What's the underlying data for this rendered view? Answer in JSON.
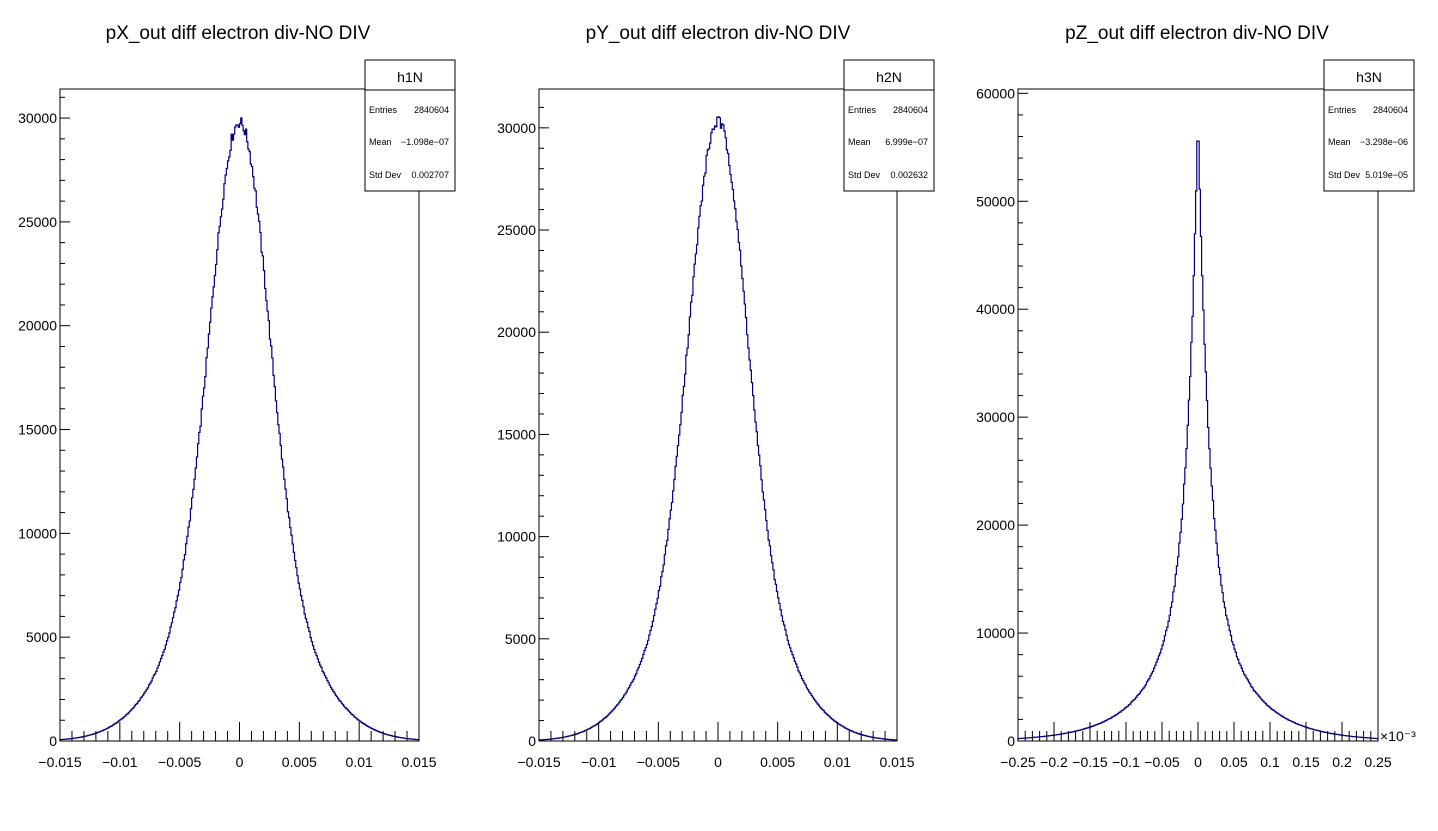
{
  "chart_data": [
    {
      "type": "histogram",
      "title": "pX_out diff electron div-NO DIV",
      "xlim": [
        -0.015,
        0.015
      ],
      "ylim": [
        0,
        31400
      ],
      "x_ticks": [
        "−0.015",
        "−0.01",
        "−0.005",
        "0",
        "0.005",
        "0.01",
        "0.015"
      ],
      "y_ticks": [
        "0",
        "5000",
        "10000",
        "15000",
        "20000",
        "25000",
        "30000"
      ],
      "x_exponent": "",
      "stats": {
        "name": "h1N",
        "entries": "2840604",
        "mean": "−1.098e−07",
        "std_dev": "0.002707"
      },
      "shape": {
        "peak": 29800,
        "sigma": 0.002707,
        "core_fraction": 0.7,
        "tail_width_ratio": 2.0,
        "bins": 300
      },
      "color": "#000080"
    },
    {
      "type": "histogram",
      "title": "pY_out diff electron div-NO DIV",
      "xlim": [
        -0.015,
        0.015
      ],
      "ylim": [
        0,
        31900
      ],
      "x_ticks": [
        "−0.015",
        "−0.01",
        "−0.005",
        "0",
        "0.005",
        "0.01",
        "0.015"
      ],
      "y_ticks": [
        "0",
        "5000",
        "10000",
        "15000",
        "20000",
        "25000",
        "30000"
      ],
      "x_exponent": "",
      "stats": {
        "name": "h2N",
        "entries": "2840604",
        "mean": "6.999e−07",
        "std_dev": "0.002632"
      },
      "shape": {
        "peak": 30300,
        "sigma": 0.002632,
        "core_fraction": 0.7,
        "tail_width_ratio": 2.0,
        "bins": 300
      },
      "color": "#000080"
    },
    {
      "type": "histogram",
      "title": "pZ_out diff electron div-NO DIV",
      "xlim": [
        -0.25,
        0.25
      ],
      "ylim": [
        0,
        60400
      ],
      "x_ticks": [
        "−0.25",
        "−0.2",
        "−0.15",
        "−0.1",
        "−0.05",
        "0",
        "0.05",
        "0.1",
        "0.15",
        "0.2",
        "0.25"
      ],
      "y_ticks": [
        "0",
        "10000",
        "20000",
        "30000",
        "40000",
        "50000",
        "60000"
      ],
      "x_exponent": "×10⁻³",
      "stats": {
        "name": "h3N",
        "entries": "2840604",
        "mean": "−3.298e−06",
        "std_dev": "5.019e−05"
      },
      "shape": {
        "peak": 57500,
        "sigma": 0.05019,
        "cusp": true,
        "bins": 300
      },
      "color": "#000080"
    }
  ],
  "stats_labels": {
    "entries": "Entries",
    "mean": "Mean",
    "std_dev": "Std Dev"
  }
}
